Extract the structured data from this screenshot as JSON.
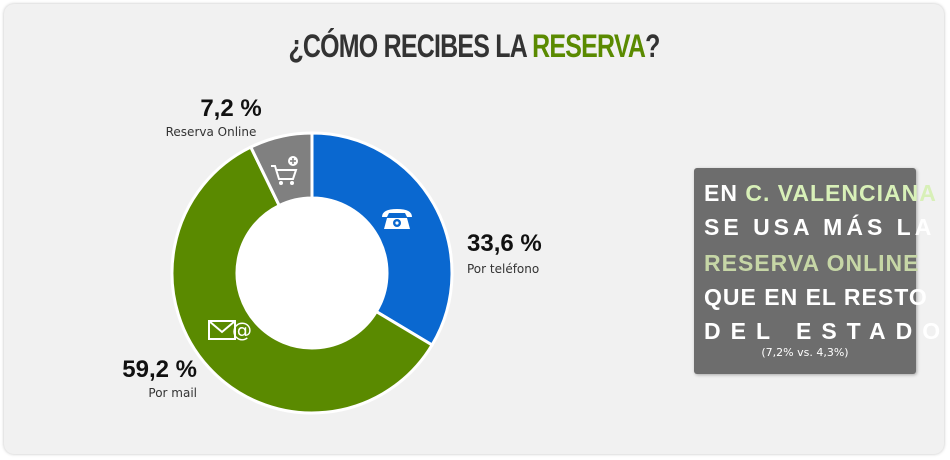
{
  "title": {
    "prefix": "¿CÓMO RECIBES LA ",
    "highlight": "RESERVA",
    "suffix": "?"
  },
  "chart_data": {
    "type": "pie",
    "donut": true,
    "title": "¿CÓMO RECIBES LA RESERVA?",
    "slices": [
      {
        "label": "Por teléfono",
        "value": 33.6,
        "pct_text": "33,6 %",
        "color": "#0a68d0",
        "icon": "telephone-icon"
      },
      {
        "label": "Por mail",
        "value": 59.2,
        "pct_text": "59,2 %",
        "color": "#5a8a00",
        "icon": "envelope-at-icon"
      },
      {
        "label": "Reserva Online",
        "value": 7.2,
        "pct_text": "7,2 %",
        "color": "#808080",
        "icon": "shopping-cart-plus-icon"
      }
    ]
  },
  "callout": {
    "line1_prefix": "EN ",
    "line1_highlight": "C. VALENCIANA",
    "line2": "SE USA MÁS LA",
    "line3": "RESERVA ONLINE",
    "line4": "QUE EN EL RESTO",
    "line5": "DEL ESTADO",
    "note": "(7,2% vs. 4,3%)"
  }
}
